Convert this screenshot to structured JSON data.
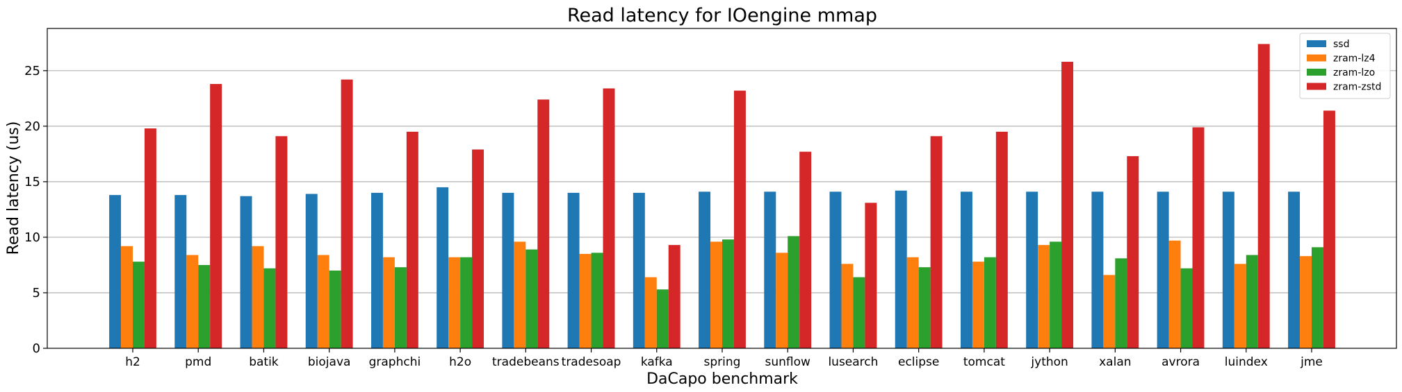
{
  "chart_data": {
    "type": "bar",
    "title": "Read latency for IOengine mmap",
    "xlabel": "DaCapo benchmark",
    "ylabel": "Read latency (us)",
    "ylim": [
      0,
      28.8
    ],
    "yticks": [
      0,
      5,
      10,
      15,
      20,
      25
    ],
    "grid": "y",
    "legend_position": "top-right",
    "categories": [
      "h2",
      "pmd",
      "batik",
      "biojava",
      "graphchi",
      "h2o",
      "tradebeans",
      "tradesoap",
      "kafka",
      "spring",
      "sunflow",
      "lusearch",
      "eclipse",
      "tomcat",
      "jython",
      "xalan",
      "avrora",
      "luindex",
      "jme"
    ],
    "series": [
      {
        "name": "ssd",
        "color": "#1f77b4",
        "values": [
          13.8,
          13.8,
          13.7,
          13.9,
          14.0,
          14.5,
          14.0,
          14.0,
          14.0,
          14.1,
          14.1,
          14.1,
          14.2,
          14.1,
          14.1,
          14.1,
          14.1,
          14.1,
          14.1
        ]
      },
      {
        "name": "zram-lz4",
        "color": "#ff7f0e",
        "values": [
          9.2,
          8.4,
          9.2,
          8.4,
          8.2,
          8.2,
          9.6,
          8.5,
          6.4,
          9.6,
          8.6,
          7.6,
          8.2,
          7.8,
          9.3,
          6.6,
          9.7,
          7.6,
          8.3
        ]
      },
      {
        "name": "zram-lzo",
        "color": "#2ca02c",
        "values": [
          7.8,
          7.5,
          7.2,
          7.0,
          7.3,
          8.2,
          8.9,
          8.6,
          5.3,
          9.8,
          10.1,
          6.4,
          7.3,
          8.2,
          9.6,
          8.1,
          7.2,
          8.4,
          9.1
        ]
      },
      {
        "name": "zram-zstd",
        "color": "#d62728",
        "values": [
          19.8,
          23.8,
          19.1,
          24.2,
          19.5,
          17.9,
          22.4,
          23.4,
          9.3,
          23.2,
          17.7,
          13.1,
          19.1,
          19.5,
          25.8,
          17.3,
          19.9,
          27.4,
          21.4
        ]
      }
    ]
  }
}
